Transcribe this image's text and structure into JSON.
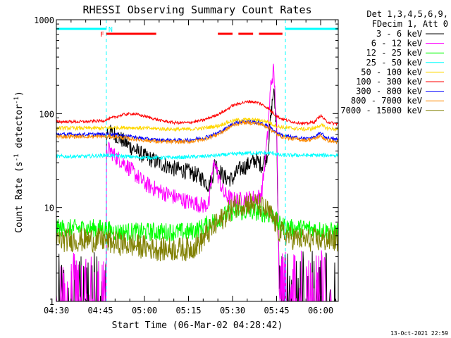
{
  "chart_data": {
    "type": "line",
    "title": "RHESSI Observing Summary Count Rates",
    "xlabel": "Start Time (06-Mar-02 04:28:42)",
    "ylabel": "Count Rate (s",
    "ylabel_exp": "-1",
    "ylabel_mid": " detector",
    "ylabel_end": ")",
    "yscale": "log",
    "ylim": [
      1,
      1000
    ],
    "xlim_min": [
      270,
      366
    ],
    "x_ticks": [
      "04:30",
      "04:45",
      "05:00",
      "05:15",
      "05:30",
      "05:45",
      "06:00"
    ],
    "x_tick_minutes": [
      270,
      285,
      300,
      315,
      330,
      345,
      360
    ],
    "y_ticks": [
      "1",
      "10",
      "100",
      "1000"
    ],
    "y_tick_values": [
      1,
      10,
      100,
      1000
    ],
    "legend": {
      "position": "right",
      "header": [
        "Det 1,3,4,5,6,9,",
        "FDecim 1, Att 0"
      ]
    },
    "flags": {
      "night": {
        "label": "N",
        "color": "#00ffff",
        "intervals_min": [
          [
            270,
            287
          ],
          [
            348,
            366
          ]
        ]
      },
      "flare": {
        "label": "F",
        "color": "#ff0000",
        "intervals_min": [
          [
            287,
            304
          ],
          [
            325,
            330
          ],
          [
            332,
            337
          ],
          [
            339,
            347
          ]
        ]
      }
    },
    "gaps_min": [
      [
        270,
        287
      ],
      [
        346,
        366
      ]
    ],
    "series": [
      {
        "name": "3 - 6 keV",
        "color": "#000000",
        "x": [
          270,
          286,
          287,
          290,
          295,
          300,
          305,
          310,
          315,
          318,
          320,
          322,
          323,
          324,
          327,
          330,
          332,
          335,
          338,
          340,
          342,
          343,
          344,
          345,
          346
        ],
        "y": [
          1,
          1,
          65,
          60,
          45,
          35,
          30,
          26,
          24,
          22,
          20,
          17,
          20,
          30,
          21,
          20,
          25,
          28,
          32,
          28,
          38,
          90,
          180,
          70,
          1
        ]
      },
      {
        "name": "6 - 12 keV",
        "color": "#ff00ff",
        "x": [
          270,
          286,
          287,
          288,
          290,
          293,
          296,
          300,
          305,
          310,
          315,
          318,
          320,
          322,
          323,
          324,
          325,
          327,
          330,
          333,
          336,
          339,
          340,
          342,
          343,
          344,
          345,
          346
        ],
        "y": [
          1,
          1,
          38,
          42,
          35,
          30,
          24,
          18,
          15,
          13,
          11.5,
          11,
          10.5,
          11,
          22,
          32,
          22,
          14,
          12,
          12,
          12.5,
          13,
          15,
          60,
          200,
          290,
          80,
          1
        ]
      },
      {
        "name": "12 - 25 keV",
        "color": "#00ff00",
        "x": [
          270,
          280,
          286,
          290,
          300,
          310,
          315,
          318,
          320,
          322,
          325,
          328,
          330,
          333,
          336,
          339,
          342,
          344,
          346,
          350,
          355,
          360,
          365
        ],
        "y": [
          6,
          6,
          6,
          5.5,
          5.5,
          5.5,
          5.5,
          5.8,
          6.2,
          6.8,
          7.5,
          8.5,
          9,
          9,
          9,
          9,
          8.5,
          8,
          6.5,
          6,
          6,
          5.8,
          5.5
        ]
      },
      {
        "name": "25 - 50 keV",
        "color": "#00ffff",
        "x": [
          270,
          280,
          287,
          300,
          310,
          320,
          325,
          330,
          335,
          340,
          342,
          344,
          346,
          350,
          355,
          360,
          365
        ],
        "y": [
          35,
          35,
          36,
          34,
          34,
          35,
          36,
          37,
          38,
          38,
          38,
          38,
          36,
          36,
          36,
          36,
          36
        ]
      },
      {
        "name": "50 - 100 keV",
        "color": "#ffd700",
        "x": [
          270,
          280,
          286,
          290,
          295,
          300,
          305,
          310,
          315,
          320,
          325,
          328,
          330,
          333,
          336,
          339,
          342,
          344,
          346,
          350,
          355,
          358,
          360,
          362,
          365
        ],
        "y": [
          70,
          70,
          70,
          71,
          71,
          70,
          69,
          68,
          68,
          70,
          74,
          80,
          84,
          86,
          86,
          85,
          82,
          76,
          72,
          70,
          68,
          70,
          76,
          70,
          68
        ]
      },
      {
        "name": "100 - 300 keV",
        "color": "#ff0000",
        "x": [
          270,
          280,
          286,
          290,
          293,
          296,
          300,
          305,
          310,
          315,
          320,
          325,
          328,
          330,
          333,
          336,
          339,
          342,
          344,
          346,
          350,
          355,
          358,
          360,
          362,
          365
        ],
        "y": [
          82,
          82,
          84,
          92,
          98,
          100,
          94,
          85,
          80,
          80,
          85,
          98,
          110,
          122,
          130,
          135,
          130,
          115,
          100,
          90,
          82,
          78,
          82,
          96,
          82,
          78
        ]
      },
      {
        "name": "300 - 800 keV",
        "color": "#0000ff",
        "x": [
          270,
          280,
          286,
          290,
          295,
          300,
          305,
          310,
          315,
          320,
          325,
          328,
          330,
          333,
          336,
          339,
          342,
          344,
          346,
          350,
          355,
          358,
          360,
          362,
          365
        ],
        "y": [
          60,
          60,
          60,
          60,
          57,
          54,
          52,
          52,
          52,
          55,
          62,
          70,
          78,
          82,
          82,
          80,
          74,
          66,
          60,
          56,
          54,
          56,
          62,
          55,
          53
        ]
      },
      {
        "name": "800 - 7000 keV",
        "color": "#ff8c00",
        "x": [
          270,
          280,
          286,
          290,
          295,
          300,
          305,
          310,
          315,
          320,
          325,
          328,
          330,
          333,
          336,
          339,
          342,
          344,
          346,
          350,
          355,
          358,
          360,
          362,
          365
        ],
        "y": [
          57,
          57,
          57,
          57,
          54,
          52,
          50,
          50,
          50,
          53,
          60,
          68,
          75,
          80,
          80,
          78,
          72,
          64,
          58,
          54,
          52,
          54,
          58,
          52,
          50
        ]
      },
      {
        "name": "7000 - 15000 keV",
        "color": "#808000",
        "x": [
          270,
          280,
          286,
          290,
          295,
          300,
          305,
          310,
          315,
          318,
          320,
          322,
          325,
          328,
          330,
          333,
          336,
          339,
          342,
          344,
          346,
          350,
          355,
          360,
          365
        ],
        "y": [
          4.5,
          4.5,
          4.5,
          4.2,
          4,
          3.8,
          3.6,
          3.6,
          3.6,
          4,
          4.6,
          5.5,
          6.8,
          8.5,
          10,
          11,
          11,
          10.5,
          9,
          7.5,
          5.5,
          4.8,
          4.5,
          4.5,
          4.5
        ]
      }
    ]
  },
  "footer": {
    "timestamp": "13-Oct-2021 22:59"
  }
}
